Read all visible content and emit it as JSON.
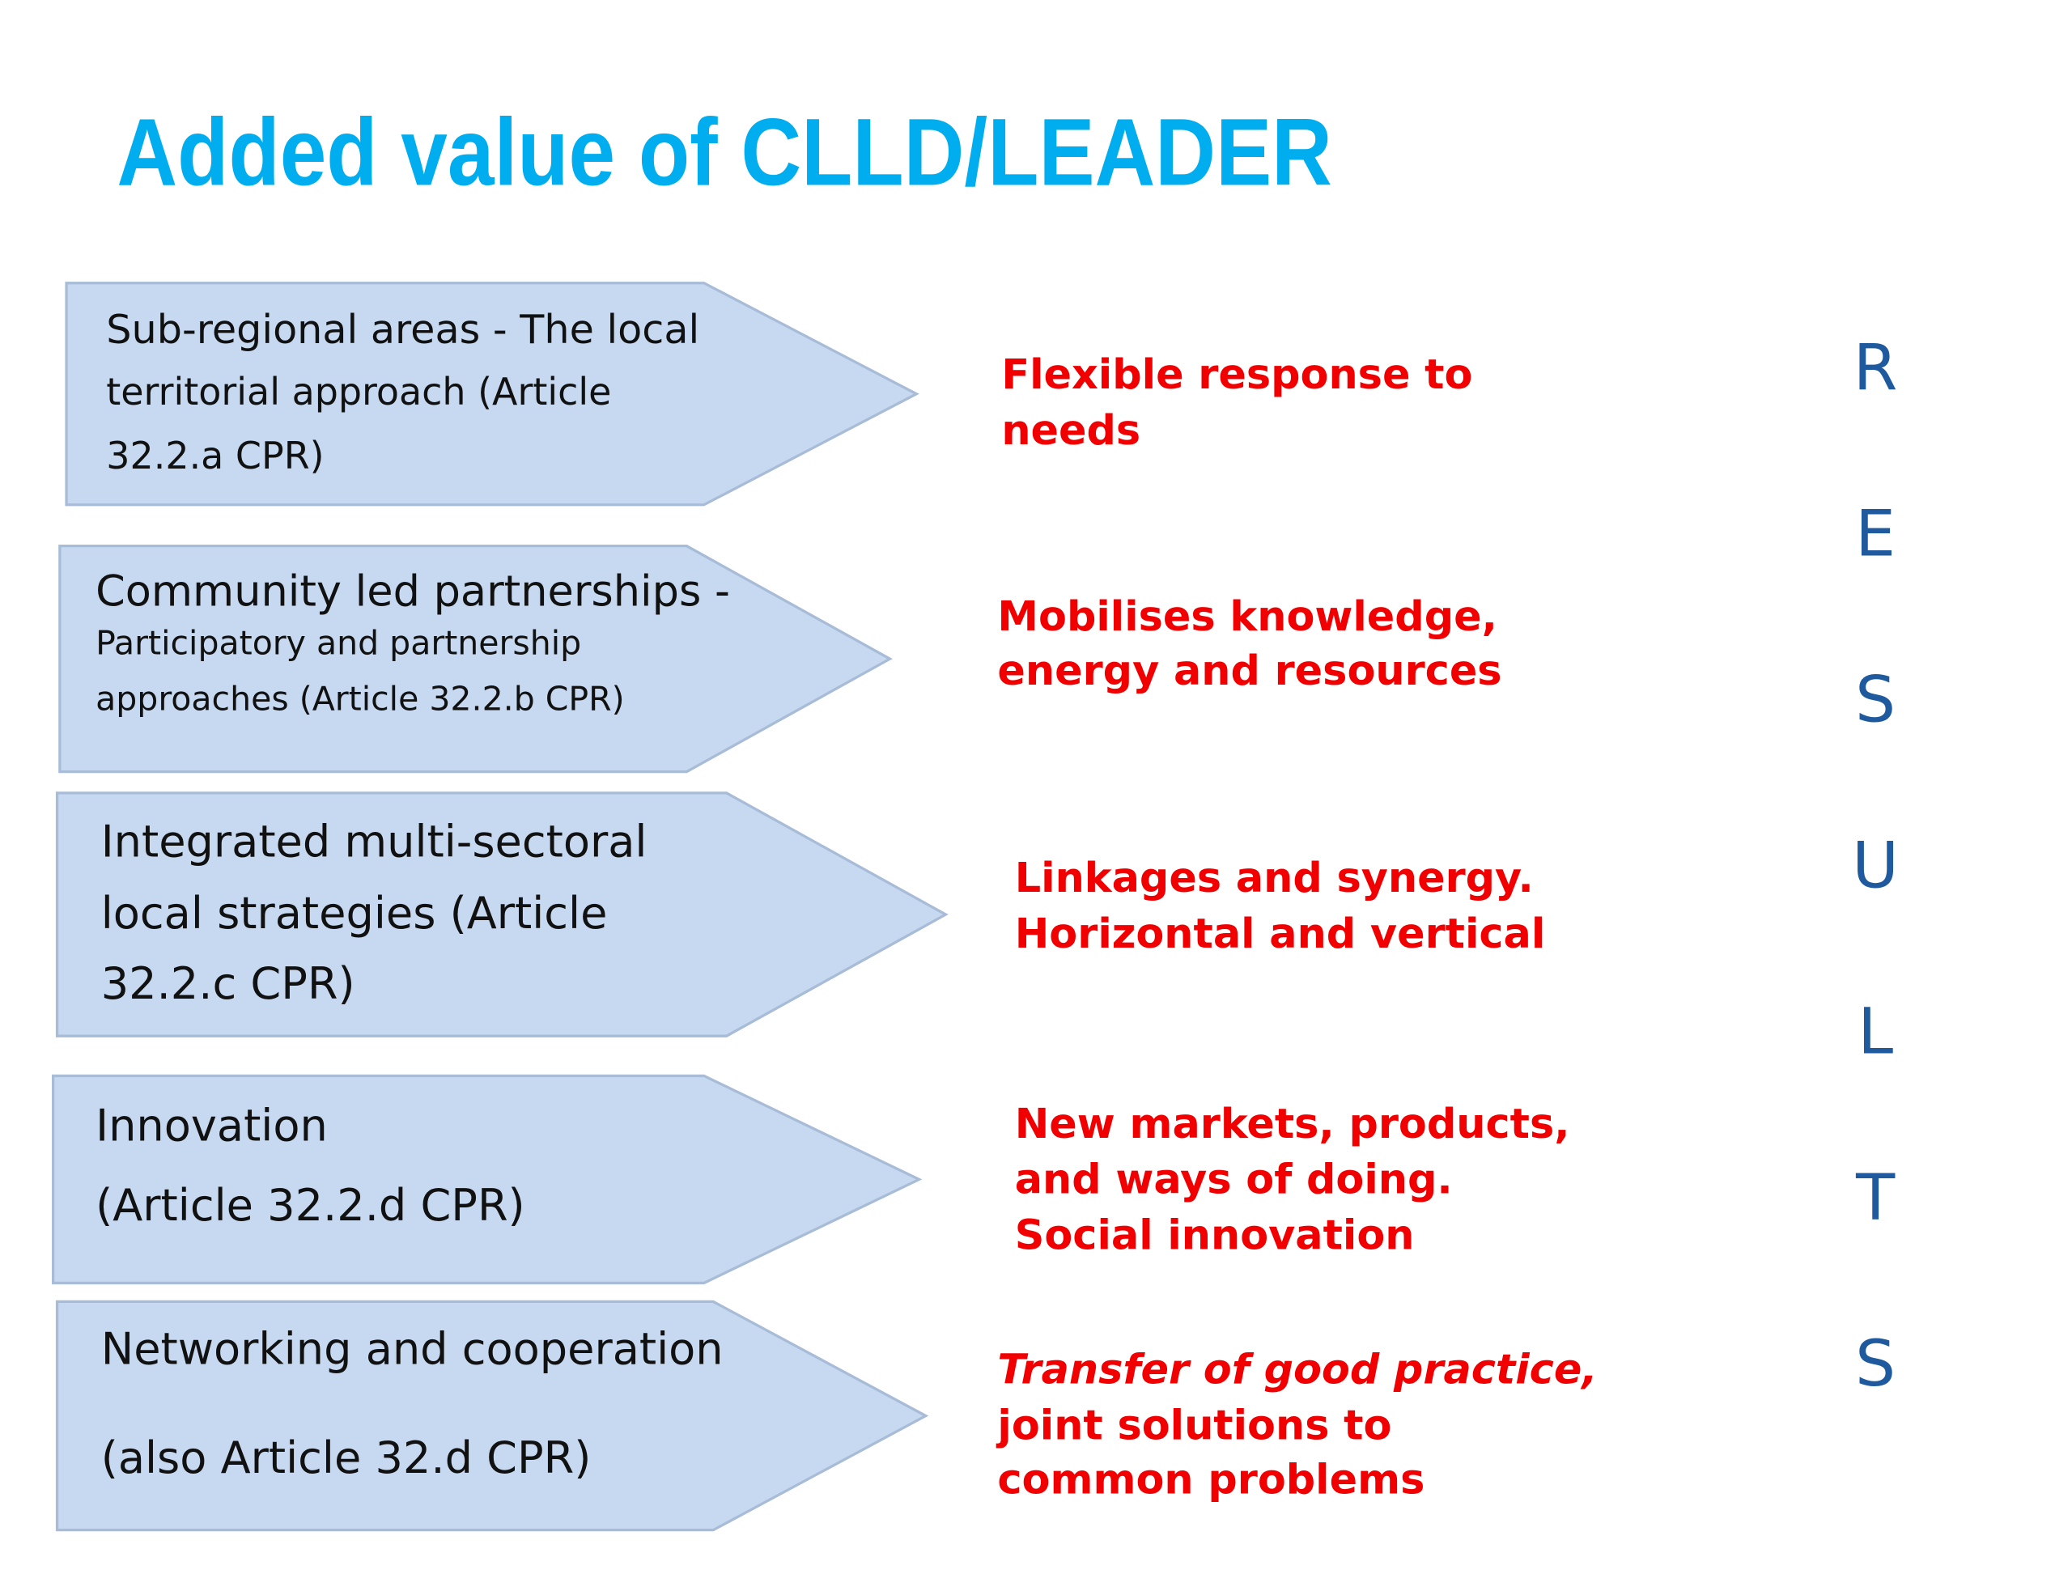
{
  "title": "Added value of CLLD/LEADER",
  "rows": [
    {
      "box": [
        "Sub-regional areas - The local",
        "territorial approach (Article",
        "32.2.a CPR)"
      ],
      "result": [
        "Flexible response to",
        "needs"
      ]
    },
    {
      "box": [
        "Community led partnerships -",
        "Participatory and partnership",
        "approaches (Article 32.2.b CPR)"
      ],
      "result": [
        "Mobilises knowledge,",
        "energy and resources"
      ]
    },
    {
      "box": [
        "Integrated multi-sectoral",
        "local strategies (Article",
        "32.2.c CPR)"
      ],
      "result": [
        "Linkages and synergy.",
        "Horizontal and vertical"
      ]
    },
    {
      "box": [
        "Innovation",
        "(Article 32.2.d CPR)"
      ],
      "result": [
        "New markets, products,",
        "and ways of doing.",
        "Social innovation"
      ]
    },
    {
      "box": [
        "Networking and cooperation",
        "(also Article 32.d CPR)"
      ],
      "result": [
        "Transfer of good practice,",
        "joint solutions to",
        "common problems"
      ]
    }
  ],
  "results_letters": [
    "R",
    "E",
    "S",
    "U",
    "L",
    "T",
    "S"
  ]
}
